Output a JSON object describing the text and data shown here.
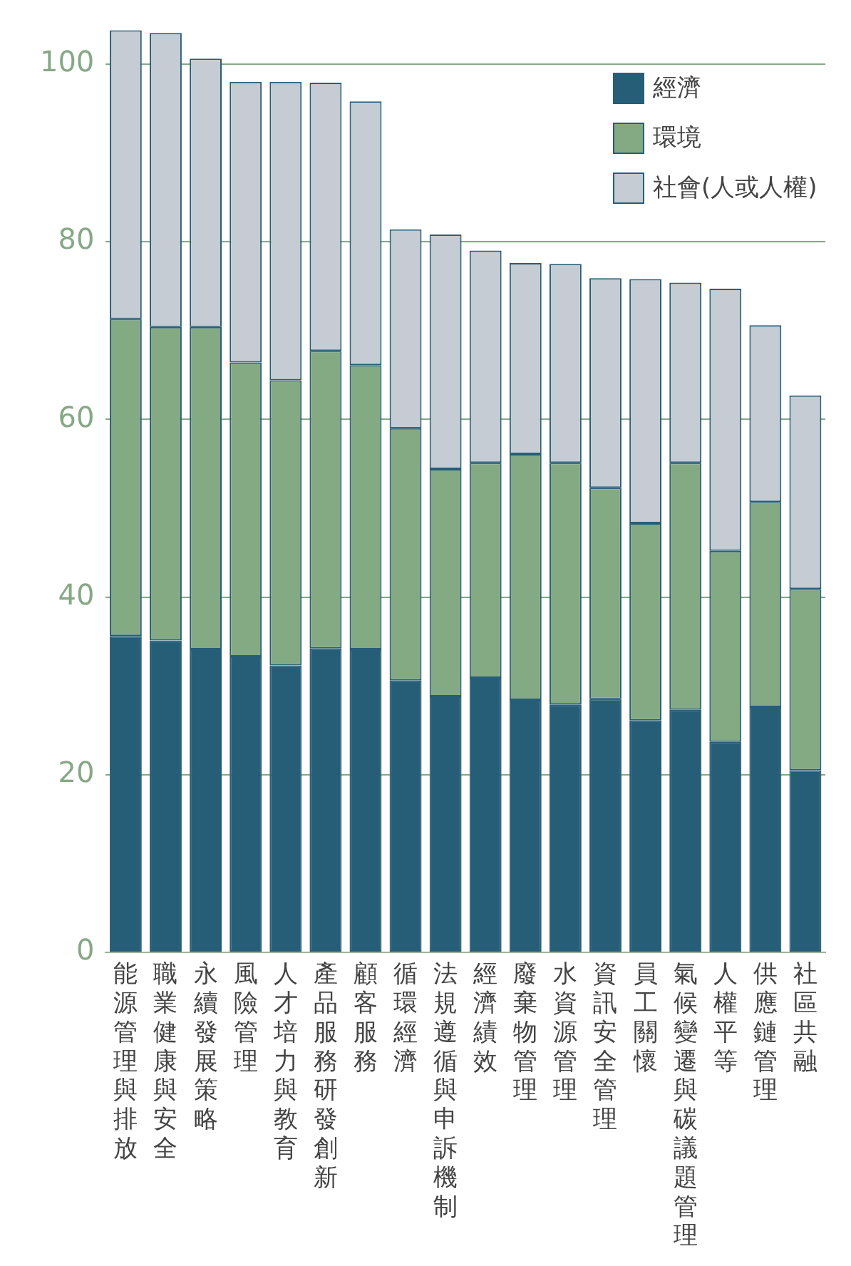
{
  "chart_data": {
    "type": "bar",
    "stacked": true,
    "categories": [
      "能源管理與排放",
      "職業健康與安全",
      "永續發展策略",
      "風險管理",
      "人才培力與教育",
      "產品服務研發創新",
      "顧客服務",
      "循環經濟",
      "法規遵循與申訴機制",
      "經濟績效",
      "廢棄物管理",
      "水資源管理",
      "資訊安全管理",
      "員工關懷",
      "氣候變遷與碳議題管理",
      "人權平等",
      "供應鏈管理",
      "社區共融"
    ],
    "series": [
      {
        "name": "經濟",
        "color": "#265e78",
        "values": [
          35.6,
          35.1,
          34.1,
          33.3,
          32.3,
          34.2,
          34.1,
          30.6,
          28.8,
          30.9,
          28.4,
          27.9,
          28.5,
          26.1,
          27.3,
          23.7,
          27.6,
          20.5
        ]
      },
      {
        "name": "環境",
        "color": "#84aa84",
        "values": [
          35.7,
          35.3,
          36.3,
          33.1,
          32.1,
          33.5,
          32.0,
          28.4,
          25.6,
          24.2,
          27.7,
          27.2,
          23.8,
          22.2,
          27.8,
          21.5,
          23.1,
          20.4
        ]
      },
      {
        "name": "社會(人或人權)",
        "color": "#c5ccd3",
        "values": [
          32.5,
          33.1,
          30.2,
          31.6,
          33.6,
          30.2,
          29.7,
          22.4,
          26.4,
          23.9,
          21.5,
          22.4,
          23.6,
          27.5,
          20.3,
          29.5,
          19.9,
          21.8
        ]
      }
    ],
    "ylim": [
      0,
      104
    ],
    "yticks": [
      0,
      20,
      40,
      60,
      80,
      100
    ],
    "grid": "y",
    "legend": "top right"
  }
}
